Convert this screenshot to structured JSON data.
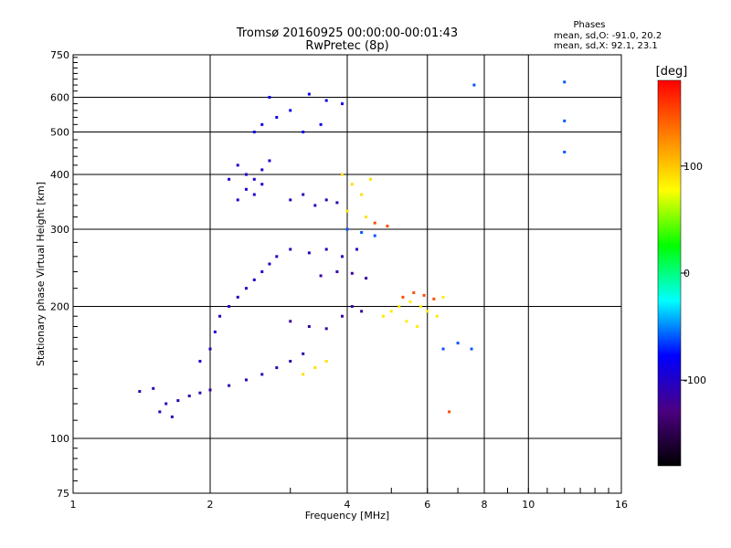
{
  "chart_data": {
    "type": "scatter",
    "title": "Tromsø 20160925 00:00:00-00:01:43",
    "subtitle": "RwPretec (8p)",
    "legend_title": "Phases",
    "legend_lines": [
      "mean, sd,O: -91.0, 20.2",
      "mean, sd,X:  92.1, 23.1"
    ],
    "xlabel": "Frequency [MHz]",
    "ylabel": "Stationary phase Virtual Height [km]",
    "x_scale": "log",
    "y_scale": "log",
    "xlim": [
      1,
      16
    ],
    "ylim": [
      75,
      750
    ],
    "x_ticks": [
      1,
      2,
      4,
      6,
      8,
      10,
      16
    ],
    "x_tick_labels": [
      "1",
      "2",
      "4",
      "6",
      "8",
      "10",
      "16"
    ],
    "y_ticks": [
      75,
      100,
      200,
      300,
      400,
      500,
      600,
      750
    ],
    "y_tick_labels": [
      "75",
      "100",
      "200",
      "300",
      "400",
      "500",
      "600",
      "750"
    ],
    "x_gridlines": [
      2,
      4,
      6,
      8,
      10
    ],
    "y_gridlines": [
      100,
      200,
      300,
      400,
      500,
      600
    ],
    "colorbar": {
      "label": "[deg]",
      "range": [
        -180,
        180
      ],
      "ticks": [
        100,
        0,
        -100
      ],
      "tick_labels": [
        "100",
        "0",
        "-100"
      ],
      "colors": [
        "#000000",
        "#4b0082",
        "#0000ff",
        "#00ffff",
        "#00ff00",
        "#ffff00",
        "#ff8000",
        "#ff0000"
      ]
    },
    "series": [
      {
        "phase": -110,
        "points": [
          [
            1.6,
            120
          ],
          [
            1.7,
            122
          ],
          [
            1.8,
            125
          ],
          [
            1.9,
            127
          ],
          [
            2.0,
            129
          ],
          [
            2.2,
            132
          ],
          [
            2.4,
            136
          ],
          [
            2.6,
            140
          ],
          [
            2.8,
            145
          ],
          [
            3.0,
            150
          ],
          [
            3.2,
            156
          ],
          [
            1.5,
            130
          ],
          [
            1.4,
            128
          ],
          [
            1.55,
            115
          ],
          [
            1.65,
            112
          ]
        ]
      },
      {
        "phase": -100,
        "points": [
          [
            1.9,
            150
          ],
          [
            2.0,
            160
          ],
          [
            2.05,
            175
          ],
          [
            2.1,
            190
          ],
          [
            2.2,
            200
          ],
          [
            2.3,
            210
          ],
          [
            2.4,
            220
          ],
          [
            2.5,
            230
          ],
          [
            2.6,
            240
          ],
          [
            2.7,
            250
          ],
          [
            2.8,
            260
          ]
        ]
      },
      {
        "phase": -95,
        "points": [
          [
            2.3,
            350
          ],
          [
            2.4,
            370
          ],
          [
            2.5,
            390
          ],
          [
            2.6,
            410
          ],
          [
            2.7,
            430
          ],
          [
            2.5,
            360
          ],
          [
            2.4,
            400
          ],
          [
            2.6,
            380
          ],
          [
            2.3,
            420
          ],
          [
            2.2,
            390
          ]
        ]
      },
      {
        "phase": -105,
        "points": [
          [
            3.0,
            350
          ],
          [
            3.2,
            360
          ],
          [
            3.4,
            340
          ],
          [
            3.6,
            350
          ],
          [
            3.8,
            345
          ],
          [
            3.0,
            270
          ],
          [
            3.3,
            265
          ],
          [
            3.6,
            270
          ],
          [
            3.9,
            260
          ],
          [
            4.2,
            270
          ]
        ]
      },
      {
        "phase": -115,
        "points": [
          [
            3.0,
            185
          ],
          [
            3.3,
            180
          ],
          [
            3.6,
            178
          ],
          [
            3.9,
            190
          ],
          [
            4.1,
            200
          ],
          [
            4.3,
            195
          ],
          [
            3.5,
            235
          ],
          [
            3.8,
            240
          ],
          [
            4.1,
            238
          ],
          [
            4.4,
            232
          ]
        ]
      },
      {
        "phase": -85,
        "points": [
          [
            2.6,
            520
          ],
          [
            2.8,
            540
          ],
          [
            3.0,
            560
          ],
          [
            2.7,
            600
          ],
          [
            3.3,
            610
          ],
          [
            3.6,
            590
          ],
          [
            3.9,
            580
          ],
          [
            2.5,
            500
          ],
          [
            3.2,
            500
          ],
          [
            3.5,
            520
          ]
        ]
      },
      {
        "phase": 90,
        "points": [
          [
            3.9,
            400
          ],
          [
            4.1,
            380
          ],
          [
            4.3,
            360
          ],
          [
            4.5,
            390
          ],
          [
            4.0,
            330
          ],
          [
            4.4,
            320
          ],
          [
            3.2,
            140
          ],
          [
            3.4,
            145
          ],
          [
            3.6,
            150
          ]
        ]
      },
      {
        "phase": 85,
        "points": [
          [
            4.8,
            190
          ],
          [
            5.0,
            195
          ],
          [
            5.2,
            200
          ],
          [
            5.5,
            205
          ],
          [
            5.8,
            200
          ],
          [
            6.0,
            195
          ],
          [
            6.3,
            190
          ],
          [
            5.4,
            185
          ],
          [
            5.7,
            180
          ],
          [
            6.5,
            210
          ]
        ]
      },
      {
        "phase": 150,
        "points": [
          [
            5.3,
            210
          ],
          [
            5.6,
            215
          ],
          [
            5.9,
            212
          ],
          [
            6.2,
            208
          ],
          [
            4.6,
            310
          ],
          [
            4.9,
            305
          ],
          [
            6.7,
            115
          ]
        ]
      },
      {
        "phase": -60,
        "points": [
          [
            4.0,
            300
          ],
          [
            4.3,
            295
          ],
          [
            4.6,
            290
          ],
          [
            6.5,
            160
          ],
          [
            7.0,
            165
          ],
          [
            7.5,
            160
          ],
          [
            12.0,
            650
          ],
          [
            12.0,
            530
          ],
          [
            12.0,
            450
          ],
          [
            7.6,
            640
          ]
        ]
      }
    ]
  }
}
